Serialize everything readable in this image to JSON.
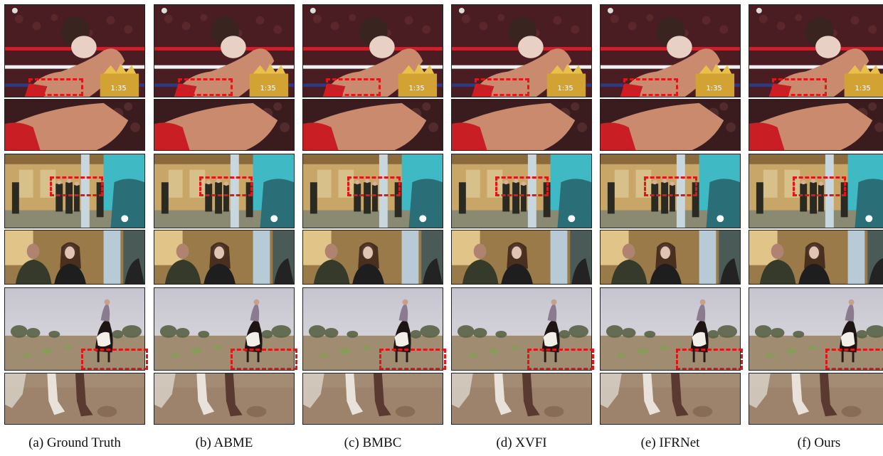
{
  "columns": [
    {
      "caption": "(a) Ground Truth",
      "scoreboard": "1:35"
    },
    {
      "caption": "(b) ABME",
      "scoreboard": "1:35"
    },
    {
      "caption": "(c) BMBC",
      "scoreboard": "1:35"
    },
    {
      "caption": "(d) XVFI",
      "scoreboard": "1:35"
    },
    {
      "caption": "(e) IFRNet",
      "scoreboard": "1:35"
    },
    {
      "caption": "(f) Ours",
      "scoreboard": "1:35"
    }
  ],
  "colors": {
    "highlight_box": "#e0161a",
    "boxing_crowd": "#4a1d22",
    "ring_rope_red": "#c8232c",
    "ring_rope_white": "#f2f2f2",
    "ring_rope_blue": "#2c3a86",
    "skin": "#c98a6e",
    "glove_red": "#c81e24",
    "scoreboard": "#d2a233",
    "hallway_wall": "#c8a668",
    "hallway_floor": "#8a8a72",
    "car_teal": "#2a6f78",
    "sky_teal": "#3fb9c4",
    "desert_sky": "#d4d2d8",
    "desert_ground": "#a08c70",
    "horse_dark": "#1d1414",
    "dust": "#9d836b"
  }
}
